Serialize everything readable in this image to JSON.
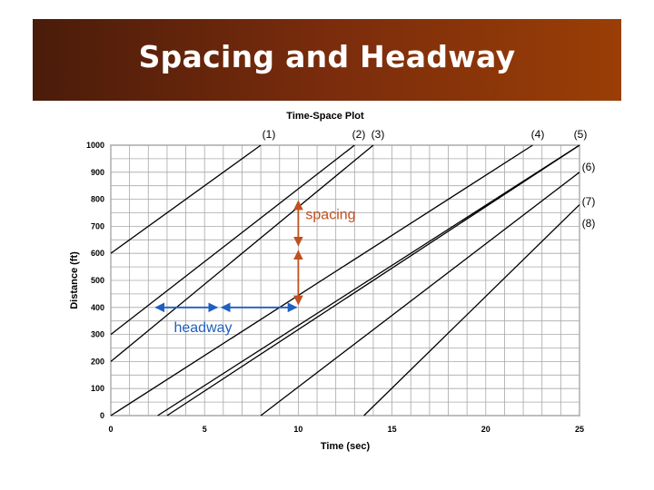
{
  "slide": {
    "title": "Spacing and Headway",
    "title_bar_colors": [
      "#4a1c0a",
      "#9a3e06"
    ]
  },
  "chart_data": {
    "type": "line",
    "title": "Time-Space Plot",
    "xlabel": "Time (sec)",
    "ylabel": "Distance (ft)",
    "xlim": [
      0,
      25
    ],
    "ylim": [
      0,
      1000
    ],
    "x_ticks": [
      0,
      5,
      10,
      15,
      20,
      25
    ],
    "y_ticks": [
      0,
      100,
      200,
      300,
      400,
      500,
      600,
      700,
      800,
      900,
      1000
    ],
    "grid": true,
    "series": [
      {
        "name": "(1)",
        "points": [
          [
            0,
            600
          ],
          [
            8,
            1000
          ]
        ]
      },
      {
        "name": "(2)",
        "points": [
          [
            0,
            300
          ],
          [
            13,
            1000
          ]
        ]
      },
      {
        "name": "(3)",
        "points": [
          [
            0,
            200
          ],
          [
            14,
            1000
          ]
        ]
      },
      {
        "name": "(4)",
        "points": [
          [
            0,
            0
          ],
          [
            22.5,
            1000
          ]
        ]
      },
      {
        "name": "(5)",
        "points": [
          [
            2.5,
            0
          ],
          [
            25,
            1000
          ]
        ]
      },
      {
        "name": "(6)",
        "points": [
          [
            8,
            0
          ],
          [
            25,
            900
          ]
        ]
      },
      {
        "name": "(7)",
        "points": [
          [
            13.5,
            0
          ],
          [
            25,
            780
          ]
        ]
      },
      {
        "name": "(8)",
        "points": [
          [
            3,
            0
          ],
          [
            25,
            1000
          ]
        ]
      }
    ],
    "annotations": [
      {
        "label": "spacing",
        "type": "vertical-double-arrow",
        "color": "#c0501e",
        "x": 10,
        "y_from": 405,
        "y_to": 800
      },
      {
        "label": "headway",
        "type": "horizontal-double-arrow",
        "color": "#1f5fbf",
        "y": 400,
        "x_from": 2.3,
        "x_to": 10
      }
    ]
  }
}
